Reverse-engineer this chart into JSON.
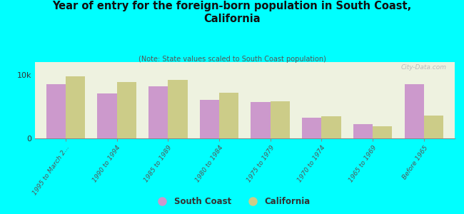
{
  "title": "Year of entry for the foreign-born population in South Coast,\nCalifornia",
  "subtitle": "(Note: State values scaled to South Coast population)",
  "categories": [
    "1995 to March 2...",
    "1990 to 1994",
    "1985 to 1989",
    "1980 to 1984",
    "1975 to 1979",
    "1970 to 1974",
    "1965 to 1969",
    "Before 1965"
  ],
  "south_coast": [
    8500,
    7000,
    8200,
    6000,
    5700,
    3200,
    2200,
    8500
  ],
  "california": [
    9800,
    8800,
    9200,
    7200,
    5800,
    3400,
    1900,
    3500
  ],
  "south_coast_color": "#cc99cc",
  "california_color": "#cccc88",
  "background_color": "#00ffff",
  "plot_bg_color": "#eef2e0",
  "ylim": [
    0,
    12000
  ],
  "ytick_label": "10k",
  "ytick_val": 10000,
  "bar_width": 0.38,
  "watermark": "City-Data.com"
}
